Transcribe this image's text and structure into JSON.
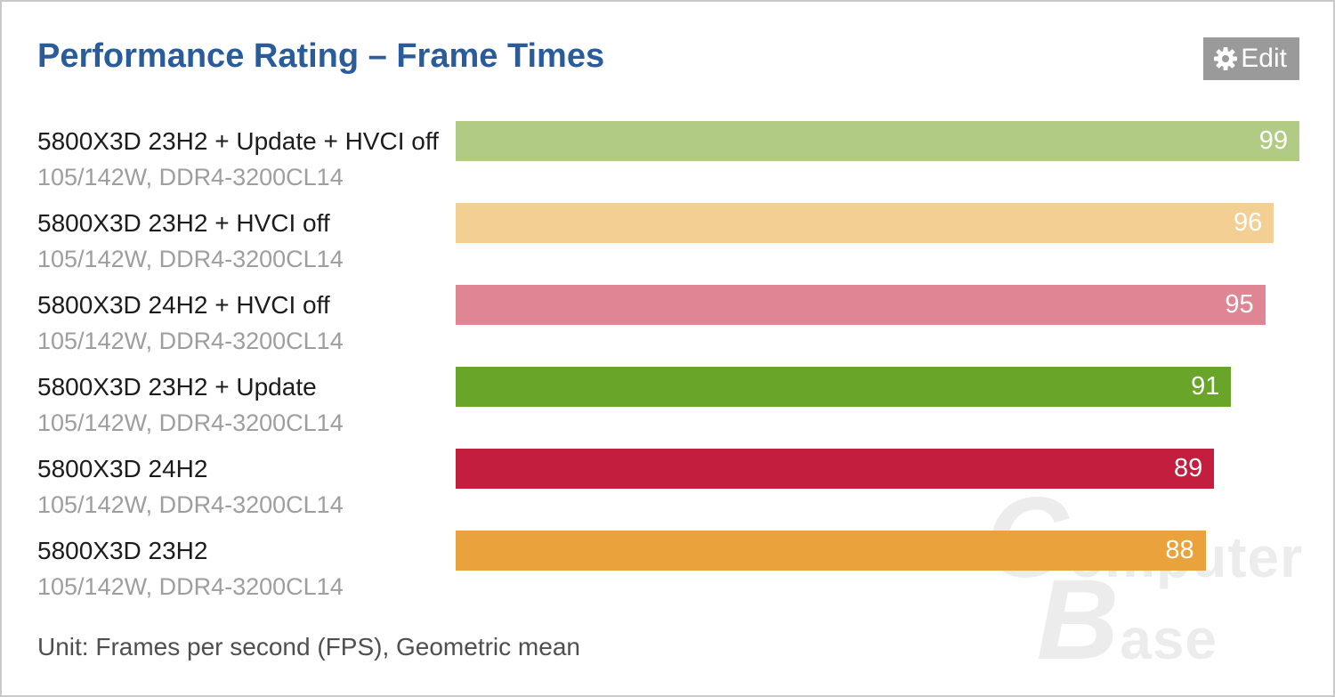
{
  "header": {
    "title": "Performance Rating – Frame Times",
    "edit_label": "Edit"
  },
  "chart_data": {
    "type": "bar",
    "orientation": "horizontal",
    "title": "Performance Rating – Frame Times",
    "unit_note": "Unit: Frames per second (FPS), Geometric mean",
    "value_axis_max": 99,
    "value_labels_shown": true,
    "grid": false,
    "legend": false,
    "bars": [
      {
        "label": "5800X3D 23H2 + Update + HVCI off",
        "sublabel": "105/142W, DDR4-3200CL14",
        "value": 99,
        "color": "#b2cb84"
      },
      {
        "label": "5800X3D 23H2 + HVCI off",
        "sublabel": "105/142W, DDR4-3200CL14",
        "value": 96,
        "color": "#f4cf94"
      },
      {
        "label": "5800X3D 24H2 + HVCI off",
        "sublabel": "105/142W, DDR4-3200CL14",
        "value": 95,
        "color": "#e08594"
      },
      {
        "label": "5800X3D 23H2 + Update",
        "sublabel": "105/142W, DDR4-3200CL14",
        "value": 91,
        "color": "#68a528"
      },
      {
        "label": "5800X3D 24H2",
        "sublabel": "105/142W, DDR4-3200CL14",
        "value": 89,
        "color": "#c31e3e"
      },
      {
        "label": "5800X3D 23H2",
        "sublabel": "105/142W, DDR4-3200CL14",
        "value": 88,
        "color": "#eaa33c"
      }
    ]
  },
  "footer": {
    "unit_note": "Unit: Frames per second (FPS), Geometric mean"
  },
  "watermark": {
    "line1_cap": "C",
    "line1_rest": "omputer",
    "line2_cap": "B",
    "line2_rest": "ase"
  },
  "colors": {
    "title": "#2a5c9c",
    "edit-bg": "#9a9a9a",
    "value-text": "#ffffff"
  }
}
